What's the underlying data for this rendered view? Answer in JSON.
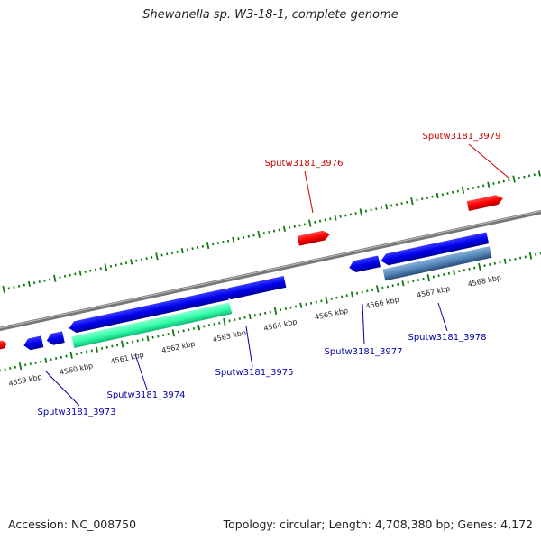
{
  "title": "Shewanella sp. W3-18-1, complete genome",
  "footer": {
    "accession": "Accession: NC_008750",
    "summary": "Topology: circular; Length: 4,708,380 bp; Genes: 4,172"
  },
  "colors": {
    "forward_gene": "#ff0000",
    "reverse_gene": "#0000ee",
    "highlight_gene": "#33ffaa",
    "alt_gene": "#5588bb",
    "forward_label": "#cc0000",
    "reverse_label": "#0000aa",
    "tick": "#117711",
    "axis": "#888888"
  },
  "scale": {
    "ticks": [
      {
        "label": "4559 kbp"
      },
      {
        "label": "4560 kbp"
      },
      {
        "label": "4561 kbp"
      },
      {
        "label": "4562 kbp"
      },
      {
        "label": "4563 kbp"
      },
      {
        "label": "4564 kbp"
      },
      {
        "label": "4565 kbp"
      },
      {
        "label": "4566 kbp"
      },
      {
        "label": "4567 kbp"
      },
      {
        "label": "4568 kbp"
      }
    ]
  },
  "gene_labels": [
    {
      "name": "Sputw3181_3976",
      "strand": "forward"
    },
    {
      "name": "Sputw3181_3979",
      "strand": "forward"
    },
    {
      "name": "Sputw3181_3973",
      "strand": "reverse"
    },
    {
      "name": "Sputw3181_3974",
      "strand": "reverse"
    },
    {
      "name": "Sputw3181_3975",
      "strand": "reverse"
    },
    {
      "name": "Sputw3181_3977",
      "strand": "reverse"
    },
    {
      "name": "Sputw3181_3978",
      "strand": "reverse"
    }
  ]
}
